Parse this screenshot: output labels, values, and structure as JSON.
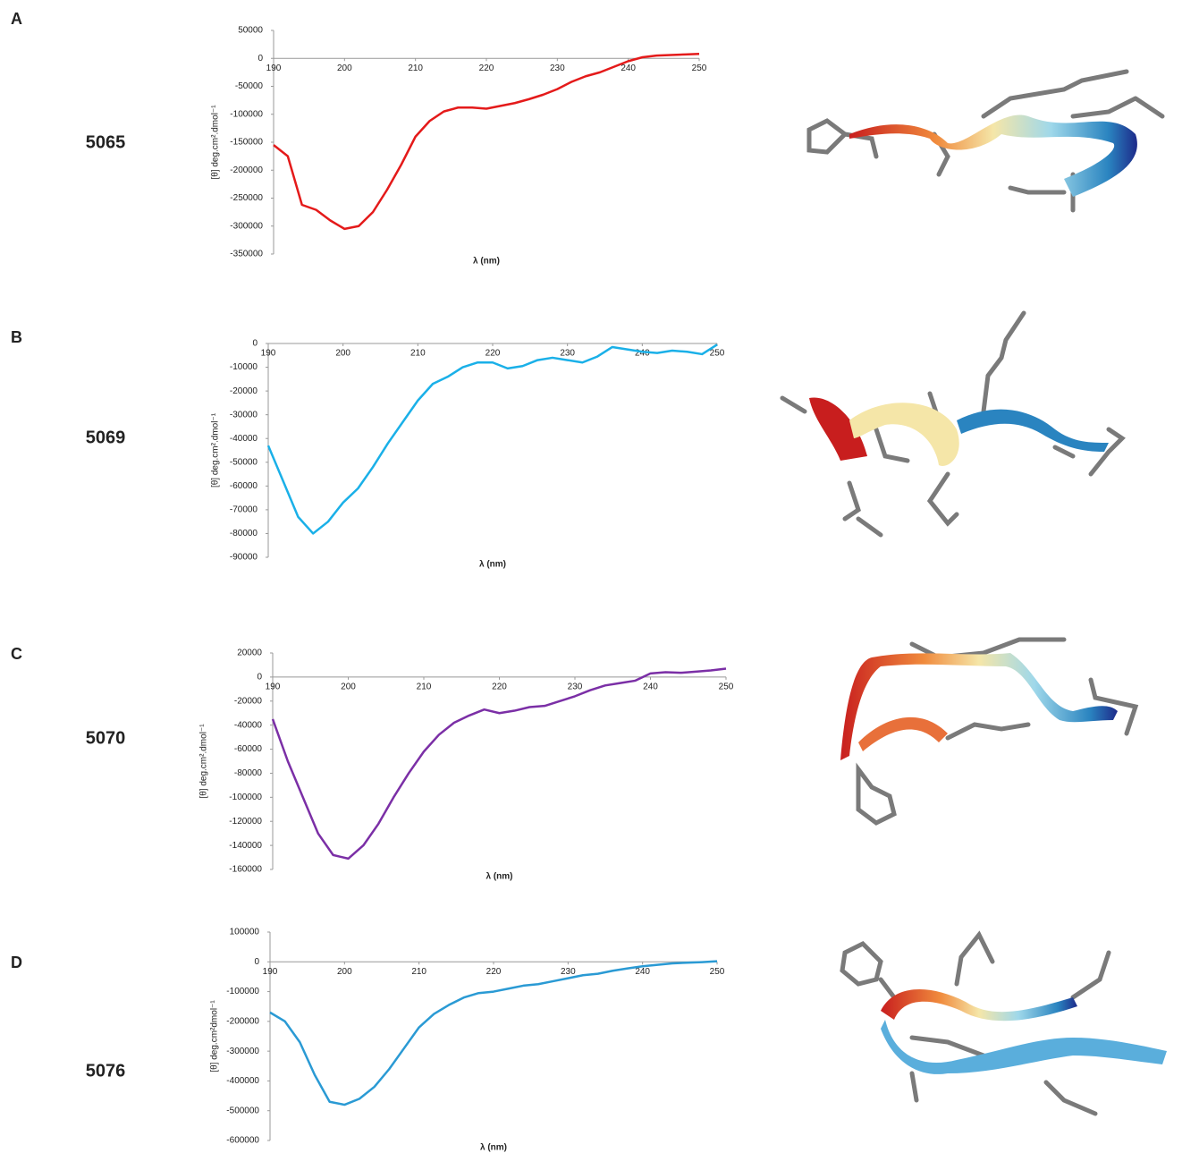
{
  "chart_data": [
    {
      "type": "line",
      "panel": "A",
      "sample": "5065",
      "xlabel": "λ (nm)",
      "ylabel": "[θ] deg.cm².dmol⁻¹",
      "color": "#e41a1a",
      "xlim": [
        190,
        250
      ],
      "xticks": [
        190,
        200,
        210,
        220,
        230,
        240,
        250
      ],
      "ylim": [
        -350000,
        50000
      ],
      "yticks": [
        -350000,
        -300000,
        -250000,
        -200000,
        -150000,
        -100000,
        -50000,
        0,
        50000
      ],
      "x": [
        190,
        192,
        194,
        196,
        198,
        200,
        202,
        204,
        206,
        208,
        210,
        212,
        214,
        216,
        218,
        220,
        222,
        224,
        226,
        228,
        230,
        232,
        234,
        236,
        238,
        240,
        242,
        244,
        246,
        248,
        250
      ],
      "values": [
        -155000,
        -175000,
        -262000,
        -271000,
        -290000,
        -305000,
        -300000,
        -275000,
        -235000,
        -190000,
        -140000,
        -112000,
        -95000,
        -88000,
        -88000,
        -90000,
        -85000,
        -80000,
        -73000,
        -65000,
        -55000,
        -42000,
        -32000,
        -25000,
        -15000,
        -5000,
        2000,
        5000,
        6000,
        7000,
        8000
      ]
    },
    {
      "type": "line",
      "panel": "B",
      "sample": "5069",
      "xlabel": "λ (nm)",
      "ylabel": "[θ] deg.cm².dmol⁻¹",
      "color": "#1ab0e8",
      "xlim": [
        190,
        250
      ],
      "xticks": [
        190,
        200,
        210,
        220,
        230,
        240,
        250
      ],
      "ylim": [
        -90000,
        0
      ],
      "yticks": [
        -90000,
        -80000,
        -70000,
        -60000,
        -50000,
        -40000,
        -30000,
        -20000,
        -10000,
        0
      ],
      "x": [
        190,
        192,
        194,
        196,
        198,
        200,
        202,
        204,
        206,
        208,
        210,
        212,
        214,
        216,
        218,
        220,
        222,
        224,
        226,
        228,
        230,
        232,
        234,
        236,
        238,
        240,
        242,
        244,
        246,
        248,
        250
      ],
      "values": [
        -43000,
        -58000,
        -73000,
        -80000,
        -75000,
        -67000,
        -61000,
        -52000,
        -42000,
        -33000,
        -24000,
        -17000,
        -14000,
        -10000,
        -8000,
        -8000,
        -10500,
        -9500,
        -7000,
        -6000,
        -7000,
        -8000,
        -5500,
        -1500,
        -2500,
        -3500,
        -4000,
        -3000,
        -3500,
        -4500,
        -500
      ]
    },
    {
      "type": "line",
      "panel": "C",
      "sample": "5070",
      "xlabel": "λ (nm)",
      "ylabel": "[θ] deg.cm².dmol⁻¹",
      "color": "#7b2fa6",
      "xlim": [
        190,
        250
      ],
      "xticks": [
        190,
        200,
        210,
        220,
        230,
        240,
        250
      ],
      "ylim": [
        -160000,
        20000
      ],
      "yticks": [
        -160000,
        -140000,
        -120000,
        -100000,
        -80000,
        -60000,
        -40000,
        -20000,
        0,
        20000
      ],
      "x": [
        190,
        192,
        194,
        196,
        198,
        200,
        202,
        204,
        206,
        208,
        210,
        212,
        214,
        216,
        218,
        220,
        222,
        224,
        226,
        228,
        230,
        232,
        234,
        236,
        238,
        240,
        242,
        244,
        246,
        248,
        250
      ],
      "values": [
        -35000,
        -70000,
        -100000,
        -130000,
        -148000,
        -151000,
        -140000,
        -122000,
        -100000,
        -80000,
        -62000,
        -48000,
        -38000,
        -32000,
        -27000,
        -30000,
        -28000,
        -25000,
        -24000,
        -20000,
        -16000,
        -11000,
        -7000,
        -5000,
        -3000,
        3000,
        4000,
        3500,
        4500,
        5500,
        7000
      ]
    },
    {
      "type": "line",
      "panel": "D",
      "sample": "5076",
      "xlabel": "λ (nm)",
      "ylabel": "[θ] deg.cm²dmol⁻¹",
      "color": "#2a9ad4",
      "xlim": [
        190,
        250
      ],
      "xticks": [
        190,
        200,
        210,
        220,
        230,
        240,
        250
      ],
      "ylim": [
        -600000,
        100000
      ],
      "yticks": [
        -600000,
        -500000,
        -400000,
        -300000,
        -200000,
        -100000,
        0,
        100000
      ],
      "x": [
        190,
        192,
        194,
        196,
        198,
        200,
        202,
        204,
        206,
        208,
        210,
        212,
        214,
        216,
        218,
        220,
        222,
        224,
        226,
        228,
        230,
        232,
        234,
        236,
        238,
        240,
        242,
        244,
        246,
        248,
        250
      ],
      "values": [
        -170000,
        -200000,
        -270000,
        -380000,
        -470000,
        -480000,
        -460000,
        -420000,
        -360000,
        -290000,
        -220000,
        -175000,
        -145000,
        -120000,
        -105000,
        -100000,
        -90000,
        -80000,
        -75000,
        -65000,
        -55000,
        -45000,
        -40000,
        -30000,
        -22000,
        -15000,
        -10000,
        -5000,
        -3000,
        -1000,
        2000
      ]
    }
  ]
}
